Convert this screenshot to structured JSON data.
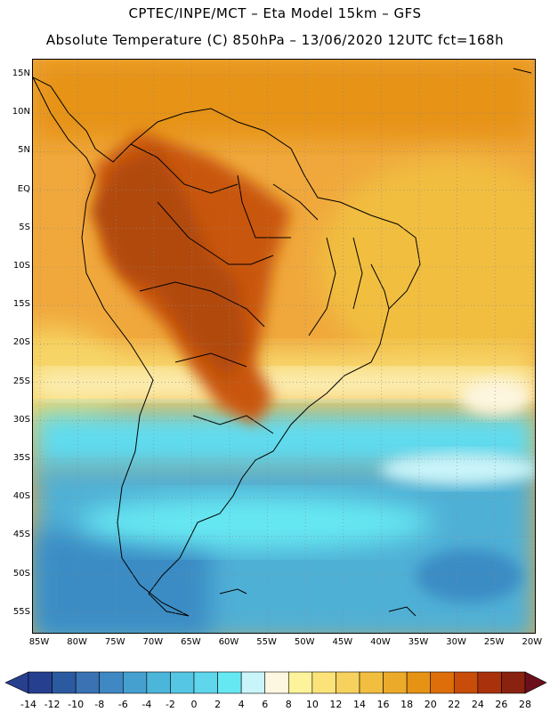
{
  "title_line1": "CPTEC/INPE/MCT –  Eta Model 15km – GFS",
  "title_line2": "Absolute Temperature (C) 850hPa – 13/06/2020 12UTC fct=168h",
  "lat_labels": [
    "15N",
    "10N",
    "5N",
    "EQ",
    "5S",
    "10S",
    "15S",
    "20S",
    "25S",
    "30S",
    "35S",
    "40S",
    "45S",
    "50S",
    "55S"
  ],
  "lon_labels": [
    "85W",
    "80W",
    "75W",
    "70W",
    "65W",
    "60W",
    "55W",
    "50W",
    "45W",
    "40W",
    "35W",
    "30W",
    "25W",
    "20W"
  ],
  "colorbar": {
    "labels": [
      "-14",
      "-12",
      "-10",
      "-8",
      "-6",
      "-4",
      "-2",
      "0",
      "2",
      "4",
      "6",
      "8",
      "10",
      "12",
      "14",
      "16",
      "18",
      "20",
      "22",
      "24",
      "26",
      "28"
    ],
    "colors": [
      "#263f8f",
      "#2c5aa0",
      "#3a72b3",
      "#3f88c3",
      "#45a0cf",
      "#4cb5da",
      "#55c6e3",
      "#5fd6ec",
      "#66e8f2",
      "#c9f4fa",
      "#fdf6e0",
      "#fdf39a",
      "#fbe37a",
      "#f6d15e",
      "#f1be40",
      "#ecaa2a",
      "#e69315",
      "#dd6e0a",
      "#c84c0a",
      "#a9320c",
      "#8a2210"
    ],
    "under_color": "#263f8f",
    "over_color": "#6b0f1a"
  },
  "map": {
    "ocean_base_color": "#f0a83c",
    "land_hot_color": "#c9570c",
    "land_very_hot_color": "#b14a0c",
    "south_cold_color": "#4fb0d6",
    "deep_cold_color": "#3a8cc4",
    "cyan_color": "#60dcef",
    "pale_color": "#fdf3c2",
    "yellow_color": "#f7d66a"
  }
}
